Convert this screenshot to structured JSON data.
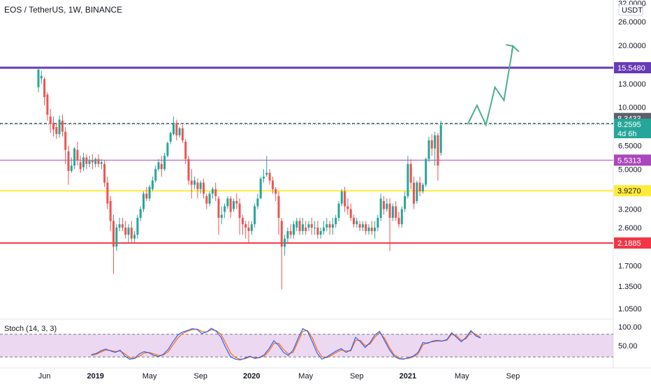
{
  "header": {
    "title": "EOS / TetherUS, 1W, BINANCE",
    "currency": "USDT"
  },
  "stoch": {
    "title": "Stoch (14, 3, 3)",
    "ticks": [
      "100.00",
      "50.00"
    ],
    "k": [
      [
        1,
        26
      ],
      [
        2,
        29
      ],
      [
        3,
        36
      ],
      [
        4,
        41
      ],
      [
        5,
        36
      ],
      [
        6,
        32
      ],
      [
        7,
        38
      ],
      [
        8,
        22
      ],
      [
        9,
        14
      ],
      [
        10,
        16
      ],
      [
        11,
        28
      ],
      [
        12,
        34
      ],
      [
        13,
        31
      ],
      [
        14,
        24
      ],
      [
        15,
        21
      ],
      [
        16,
        27
      ],
      [
        17,
        40
      ],
      [
        18,
        60
      ],
      [
        19,
        78
      ],
      [
        20,
        86
      ],
      [
        21,
        90
      ],
      [
        22,
        95
      ],
      [
        23,
        93
      ],
      [
        24,
        82
      ],
      [
        25,
        86
      ],
      [
        26,
        96
      ],
      [
        27,
        88
      ],
      [
        28,
        72
      ],
      [
        29,
        44
      ],
      [
        30,
        20
      ],
      [
        31,
        14
      ],
      [
        32,
        12
      ],
      [
        33,
        17
      ],
      [
        34,
        22
      ],
      [
        35,
        16
      ],
      [
        36,
        18
      ],
      [
        37,
        26
      ],
      [
        38,
        42
      ],
      [
        39,
        63
      ],
      [
        40,
        50
      ],
      [
        41,
        32
      ],
      [
        42,
        24
      ],
      [
        43,
        38
      ],
      [
        44,
        68
      ],
      [
        45,
        95
      ],
      [
        46,
        88
      ],
      [
        47,
        60
      ],
      [
        48,
        30
      ],
      [
        49,
        14
      ],
      [
        50,
        20
      ],
      [
        51,
        28
      ],
      [
        52,
        36
      ],
      [
        53,
        42
      ],
      [
        54,
        32
      ],
      [
        55,
        38
      ],
      [
        56,
        72
      ],
      [
        57,
        60
      ],
      [
        58,
        45
      ],
      [
        59,
        58
      ],
      [
        60,
        78
      ],
      [
        61,
        88
      ],
      [
        62,
        64
      ],
      [
        63,
        40
      ],
      [
        64,
        22
      ],
      [
        65,
        15
      ],
      [
        66,
        14
      ],
      [
        67,
        18
      ],
      [
        68,
        22
      ],
      [
        69,
        32
      ],
      [
        70,
        58
      ],
      [
        71,
        56
      ],
      [
        72,
        62
      ],
      [
        73,
        64
      ],
      [
        74,
        62
      ],
      [
        75,
        66
      ],
      [
        76,
        84
      ],
      [
        77,
        72
      ],
      [
        78,
        60
      ],
      [
        79,
        72
      ],
      [
        80,
        90
      ],
      [
        81,
        76
      ],
      [
        82,
        70
      ]
    ],
    "d": [
      [
        1,
        24
      ],
      [
        2,
        27
      ],
      [
        3,
        33
      ],
      [
        4,
        38
      ],
      [
        5,
        37
      ],
      [
        6,
        34
      ],
      [
        7,
        36
      ],
      [
        8,
        28
      ],
      [
        9,
        18
      ],
      [
        10,
        16
      ],
      [
        11,
        22
      ],
      [
        12,
        30
      ],
      [
        13,
        32
      ],
      [
        14,
        28
      ],
      [
        15,
        24
      ],
      [
        16,
        25
      ],
      [
        17,
        34
      ],
      [
        18,
        52
      ],
      [
        19,
        70
      ],
      [
        20,
        82
      ],
      [
        21,
        88
      ],
      [
        22,
        92
      ],
      [
        23,
        94
      ],
      [
        24,
        88
      ],
      [
        25,
        86
      ],
      [
        26,
        92
      ],
      [
        27,
        90
      ],
      [
        28,
        80
      ],
      [
        29,
        56
      ],
      [
        30,
        30
      ],
      [
        31,
        18
      ],
      [
        32,
        14
      ],
      [
        33,
        15
      ],
      [
        34,
        20
      ],
      [
        35,
        18
      ],
      [
        36,
        18
      ],
      [
        37,
        22
      ],
      [
        38,
        36
      ],
      [
        39,
        56
      ],
      [
        40,
        56
      ],
      [
        41,
        40
      ],
      [
        42,
        28
      ],
      [
        43,
        32
      ],
      [
        44,
        60
      ],
      [
        45,
        88
      ],
      [
        46,
        90
      ],
      [
        47,
        70
      ],
      [
        48,
        40
      ],
      [
        49,
        20
      ],
      [
        50,
        18
      ],
      [
        51,
        24
      ],
      [
        52,
        32
      ],
      [
        53,
        38
      ],
      [
        54,
        36
      ],
      [
        55,
        36
      ],
      [
        56,
        64
      ],
      [
        57,
        64
      ],
      [
        58,
        50
      ],
      [
        59,
        54
      ],
      [
        60,
        72
      ],
      [
        61,
        84
      ],
      [
        62,
        70
      ],
      [
        63,
        46
      ],
      [
        64,
        26
      ],
      [
        65,
        18
      ],
      [
        66,
        15
      ],
      [
        67,
        16
      ],
      [
        68,
        20
      ],
      [
        69,
        28
      ],
      [
        70,
        52
      ],
      [
        71,
        58
      ],
      [
        72,
        60
      ],
      [
        73,
        62
      ],
      [
        74,
        62
      ],
      [
        75,
        64
      ],
      [
        76,
        80
      ],
      [
        77,
        76
      ],
      [
        78,
        64
      ],
      [
        79,
        68
      ],
      [
        80,
        86
      ],
      [
        81,
        80
      ],
      [
        82,
        72
      ]
    ]
  },
  "levels": [
    {
      "name": "resistance-purple",
      "value": 15.548,
      "label": "15.5480",
      "color": "#673ab7",
      "width": 3
    },
    {
      "name": "level-magenta",
      "value": 5.5313,
      "label": "5.5313",
      "color": "#ab47bc",
      "width": 1
    },
    {
      "name": "level-yellow",
      "value": 3.927,
      "label": "3.9270",
      "color": "#ffeb3b",
      "width": 2
    },
    {
      "name": "support-red",
      "value": 2.1885,
      "label": "2.1885",
      "color": "#f23645",
      "width": 2
    }
  ],
  "current_price": {
    "price": "8.2595",
    "countdown": "4d 6h",
    "color": "#26a69a"
  },
  "dashed_price": {
    "value": 8.3433,
    "label": "8.3433",
    "color": "#5d606b"
  },
  "y_axis": {
    "ticks": [
      "32.0000",
      "26.0000",
      "20.0000",
      "13.0000",
      "10.0000",
      "6.5000",
      "5.0000",
      "3.2000",
      "2.6000",
      "1.7000",
      "1.3500",
      "1.0500"
    ],
    "tick_values": [
      32,
      26,
      20,
      13,
      10,
      6.5,
      5,
      3.2,
      2.6,
      1.7,
      1.35,
      1.05
    ]
  },
  "x_axis": {
    "ticks": [
      "Jun",
      "2019",
      "May",
      "Sep",
      "2020",
      "May",
      "Sep",
      "2021",
      "May",
      "Sep"
    ],
    "bold": [
      false,
      true,
      false,
      false,
      true,
      false,
      false,
      true,
      false,
      false
    ],
    "tick_weeks": [
      2,
      19,
      37,
      54,
      71,
      89,
      106,
      123,
      141,
      158
    ]
  },
  "projection": {
    "color": "#4caf8a",
    "points": [
      [
        143,
        8.3
      ],
      [
        146,
        10.2
      ],
      [
        149,
        8.2
      ],
      [
        152,
        12.5
      ],
      [
        155,
        10.8
      ],
      [
        158,
        19.8
      ],
      [
        160,
        18.6
      ]
    ]
  },
  "chart_data": {
    "type": "candlestick",
    "title": "EOS / TetherUS, 1W, BINANCE",
    "y_scale": "log",
    "ylim": [
      1.0,
      32.0
    ],
    "x_unit": "week",
    "up_color": "#26a69a",
    "down_color": "#ef5350",
    "candles": [
      [
        0,
        12.5,
        15.5,
        15.2,
        11.8
      ],
      [
        1,
        13.8,
        15.0,
        14.2,
        13.0
      ],
      [
        2,
        13.7,
        14.0,
        11.2,
        10.2
      ],
      [
        3,
        11.5,
        11.8,
        9.2,
        8.6
      ],
      [
        4,
        9.0,
        9.8,
        8.3,
        7.5
      ],
      [
        5,
        8.4,
        9.0,
        7.8,
        7.2
      ],
      [
        6,
        8.0,
        8.4,
        7.4,
        7.0
      ],
      [
        7,
        7.4,
        9.1,
        8.7,
        7.1
      ],
      [
        8,
        8.6,
        9.2,
        7.6,
        7.2
      ],
      [
        9,
        7.6,
        8.0,
        6.2,
        5.3
      ],
      [
        10,
        6.1,
        6.5,
        4.9,
        4.2
      ],
      [
        11,
        4.9,
        5.7,
        5.2,
        4.8
      ],
      [
        12,
        5.2,
        6.4,
        6.3,
        5.0
      ],
      [
        13,
        6.2,
        6.8,
        5.5,
        5.2
      ],
      [
        14,
        5.4,
        5.8,
        5.0,
        4.8
      ],
      [
        15,
        5.1,
        6.0,
        5.7,
        4.9
      ],
      [
        16,
        5.7,
        5.9,
        5.3,
        5.0
      ],
      [
        17,
        5.3,
        5.8,
        5.5,
        5.1
      ],
      [
        18,
        5.5,
        5.9,
        5.4,
        5.0
      ],
      [
        19,
        5.3,
        5.7,
        5.6,
        5.1
      ],
      [
        20,
        5.6,
        5.9,
        5.3,
        5.1
      ],
      [
        21,
        5.3,
        5.6,
        5.4,
        5.0
      ],
      [
        22,
        5.3,
        5.5,
        4.3,
        4.1
      ],
      [
        23,
        4.3,
        4.6,
        3.4,
        3.2
      ],
      [
        24,
        3.5,
        3.7,
        2.8,
        2.5
      ],
      [
        25,
        2.8,
        3.0,
        2.1,
        1.55
      ],
      [
        26,
        2.1,
        2.7,
        2.6,
        2.0
      ],
      [
        27,
        2.6,
        2.9,
        2.7,
        2.5
      ],
      [
        28,
        2.7,
        2.9,
        2.6,
        2.5
      ],
      [
        29,
        2.6,
        2.8,
        2.4,
        2.3
      ],
      [
        30,
        2.4,
        2.7,
        2.6,
        2.2
      ],
      [
        31,
        2.6,
        2.8,
        2.3,
        2.2
      ],
      [
        32,
        2.3,
        2.5,
        2.4,
        2.2
      ],
      [
        33,
        2.4,
        3.0,
        2.9,
        2.3
      ],
      [
        34,
        2.9,
        3.3,
        3.2,
        2.8
      ],
      [
        35,
        3.2,
        3.9,
        3.8,
        3.1
      ],
      [
        36,
        3.8,
        4.1,
        3.6,
        3.5
      ],
      [
        37,
        3.6,
        4.2,
        4.1,
        3.5
      ],
      [
        38,
        4.0,
        4.6,
        4.4,
        3.9
      ],
      [
        39,
        4.4,
        5.2,
        5.0,
        4.3
      ],
      [
        40,
        5.0,
        5.6,
        5.4,
        4.9
      ],
      [
        41,
        5.3,
        5.8,
        5.0,
        4.6
      ],
      [
        42,
        5.0,
        6.0,
        5.8,
        4.9
      ],
      [
        43,
        5.8,
        6.8,
        6.7,
        5.7
      ],
      [
        44,
        6.8,
        7.6,
        7.5,
        6.6
      ],
      [
        45,
        7.4,
        9.0,
        8.4,
        7.3
      ],
      [
        46,
        8.4,
        8.7,
        7.3,
        6.9
      ],
      [
        47,
        7.3,
        8.0,
        7.9,
        7.1
      ],
      [
        48,
        7.9,
        8.2,
        6.9,
        6.7
      ],
      [
        49,
        6.8,
        7.0,
        5.6,
        5.3
      ],
      [
        50,
        5.6,
        5.8,
        4.4,
        4.2
      ],
      [
        51,
        4.4,
        5.0,
        4.2,
        3.6
      ],
      [
        52,
        4.2,
        4.6,
        4.4,
        4.0
      ],
      [
        53,
        4.3,
        4.5,
        4.0,
        3.6
      ],
      [
        54,
        4.0,
        4.4,
        4.3,
        3.8
      ],
      [
        55,
        4.3,
        4.5,
        3.8,
        3.6
      ],
      [
        56,
        3.7,
        3.8,
        3.4,
        3.2
      ],
      [
        57,
        3.4,
        3.9,
        3.8,
        3.3
      ],
      [
        58,
        3.8,
        4.1,
        4.0,
        3.6
      ],
      [
        59,
        4.0,
        4.3,
        3.7,
        3.5
      ],
      [
        60,
        3.6,
        3.7,
        2.9,
        2.4
      ],
      [
        61,
        2.9,
        3.3,
        3.0,
        2.7
      ],
      [
        62,
        3.1,
        3.4,
        3.3,
        2.9
      ],
      [
        63,
        3.3,
        3.7,
        3.6,
        3.2
      ],
      [
        64,
        3.6,
        3.7,
        3.1,
        2.9
      ],
      [
        65,
        3.2,
        3.6,
        3.5,
        3.1
      ],
      [
        66,
        3.5,
        3.8,
        3.4,
        3.2
      ],
      [
        67,
        3.4,
        3.6,
        2.9,
        2.4
      ],
      [
        68,
        2.9,
        3.0,
        2.7,
        2.4
      ],
      [
        69,
        2.7,
        2.8,
        2.6,
        2.3
      ],
      [
        70,
        2.6,
        2.8,
        2.5,
        2.2
      ],
      [
        71,
        2.5,
        2.8,
        2.7,
        2.4
      ],
      [
        72,
        2.7,
        3.4,
        3.3,
        2.6
      ],
      [
        73,
        3.3,
        3.8,
        3.6,
        3.2
      ],
      [
        74,
        3.6,
        4.6,
        4.5,
        3.6
      ],
      [
        75,
        4.5,
        5.0,
        4.6,
        4.3
      ],
      [
        76,
        4.7,
        5.8,
        4.8,
        4.6
      ],
      [
        77,
        4.8,
        5.0,
        4.4,
        4.2
      ],
      [
        78,
        4.4,
        4.6,
        4.0,
        3.8
      ],
      [
        79,
        4.0,
        4.1,
        3.8,
        3.5
      ],
      [
        80,
        3.7,
        3.9,
        2.9,
        2.4
      ],
      [
        81,
        2.8,
        2.9,
        2.1,
        1.3
      ],
      [
        82,
        2.1,
        2.4,
        2.3,
        1.9
      ],
      [
        83,
        2.3,
        2.6,
        2.5,
        2.2
      ],
      [
        84,
        2.5,
        2.7,
        2.4,
        2.3
      ],
      [
        85,
        2.4,
        2.8,
        2.7,
        2.3
      ],
      [
        86,
        2.6,
        2.9,
        2.8,
        2.5
      ],
      [
        87,
        2.8,
        2.9,
        2.5,
        2.4
      ],
      [
        88,
        2.5,
        2.9,
        2.7,
        2.4
      ],
      [
        89,
        2.6,
        2.8,
        2.5,
        2.4
      ],
      [
        90,
        2.6,
        2.8,
        2.7,
        2.5
      ],
      [
        91,
        2.7,
        2.9,
        2.6,
        2.4
      ],
      [
        92,
        2.6,
        2.8,
        2.6,
        2.4
      ],
      [
        93,
        2.6,
        2.8,
        2.4,
        2.3
      ],
      [
        94,
        2.4,
        2.6,
        2.5,
        2.3
      ],
      [
        95,
        2.5,
        2.8,
        2.6,
        2.4
      ],
      [
        96,
        2.6,
        2.9,
        2.7,
        2.5
      ],
      [
        97,
        2.7,
        2.8,
        2.6,
        2.4
      ],
      [
        98,
        2.6,
        2.9,
        2.7,
        2.4
      ],
      [
        99,
        2.7,
        3.0,
        2.9,
        2.6
      ],
      [
        100,
        2.9,
        3.5,
        3.4,
        2.8
      ],
      [
        101,
        3.4,
        4.0,
        3.9,
        3.3
      ],
      [
        102,
        3.9,
        4.1,
        3.3,
        3.1
      ],
      [
        103,
        3.3,
        3.6,
        3.2,
        3.0
      ],
      [
        104,
        3.2,
        3.4,
        2.9,
        2.8
      ],
      [
        105,
        2.9,
        3.0,
        2.7,
        2.6
      ],
      [
        106,
        2.7,
        2.9,
        2.8,
        2.6
      ],
      [
        107,
        2.7,
        2.8,
        2.6,
        2.5
      ],
      [
        108,
        2.6,
        2.8,
        2.7,
        2.5
      ],
      [
        109,
        2.7,
        2.8,
        2.5,
        2.4
      ],
      [
        110,
        2.5,
        2.7,
        2.6,
        2.4
      ],
      [
        111,
        2.6,
        2.8,
        2.5,
        2.4
      ],
      [
        112,
        2.5,
        2.8,
        2.6,
        2.3
      ],
      [
        113,
        2.6,
        3.0,
        2.9,
        2.5
      ],
      [
        114,
        2.9,
        3.8,
        3.6,
        2.8
      ],
      [
        115,
        3.5,
        3.7,
        3.2,
        3.0
      ],
      [
        116,
        3.2,
        3.6,
        3.4,
        3.1
      ],
      [
        117,
        3.4,
        3.6,
        2.9,
        2.0
      ],
      [
        118,
        2.9,
        3.4,
        3.3,
        2.8
      ],
      [
        119,
        3.3,
        3.5,
        2.9,
        2.8
      ],
      [
        120,
        2.9,
        3.1,
        2.7,
        2.6
      ],
      [
        121,
        2.7,
        3.3,
        3.2,
        2.6
      ],
      [
        122,
        3.2,
        3.9,
        3.7,
        3.1
      ],
      [
        123,
        3.7,
        5.8,
        5.3,
        3.6
      ],
      [
        124,
        5.3,
        5.6,
        4.3,
        4.0
      ],
      [
        125,
        4.3,
        4.6,
        3.4,
        3.2
      ],
      [
        126,
        3.5,
        4.4,
        4.3,
        3.4
      ],
      [
        127,
        4.3,
        4.6,
        3.9,
        3.7
      ],
      [
        128,
        3.9,
        4.3,
        4.2,
        3.8
      ],
      [
        129,
        4.2,
        5.7,
        5.6,
        4.1
      ],
      [
        130,
        5.6,
        7.2,
        6.9,
        5.4
      ],
      [
        131,
        6.9,
        7.4,
        6.3,
        5.8
      ],
      [
        132,
        6.3,
        7.6,
        7.3,
        5.2
      ],
      [
        133,
        7.3,
        7.5,
        5.2,
        4.4
      ],
      [
        134,
        6.0,
        8.6,
        8.2,
        5.8
      ]
    ]
  }
}
